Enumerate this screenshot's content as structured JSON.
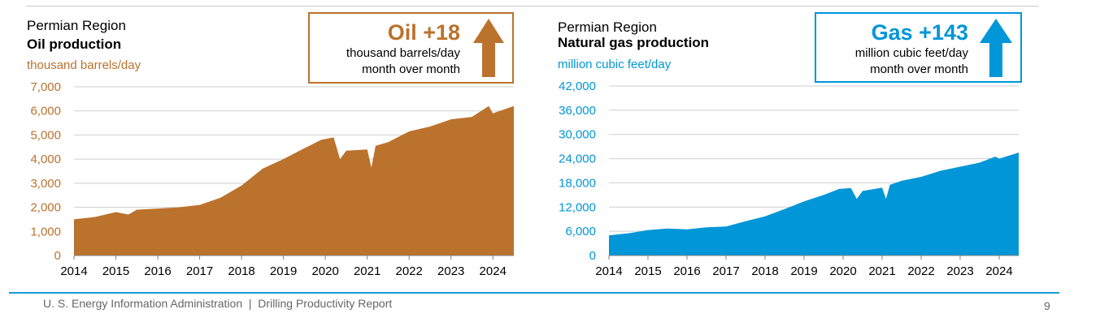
{
  "footer": {
    "text": "U. S. Energy Information Administration  |  Drilling Productivity Report",
    "page": "9"
  },
  "colors": {
    "oil": "#bb722d",
    "gas": "#0096d8",
    "grid": "#cfcfcf",
    "axis": "#808080"
  },
  "charts": {
    "oil": {
      "region": "Permian Region",
      "title": "Oil production",
      "unit": "thousand barrels/day",
      "callout": {
        "big": "Oil +18",
        "line1": "thousand barrels/day",
        "line2": "month over month",
        "arrow": "up-arrow-icon"
      }
    },
    "gas": {
      "region": "Permian Region",
      "title": "Natural gas production",
      "unit": "million cubic feet/day",
      "callout": {
        "big": "Gas +143",
        "line1": "million cubic feet/day",
        "line2": "month over month",
        "arrow": "up-arrow-icon"
      }
    }
  },
  "chart_data": [
    {
      "type": "area",
      "title": "Oil production",
      "ylabel": "thousand barrels/day",
      "ylim": [
        0,
        7000
      ],
      "yticks": [
        "0",
        "1,000",
        "2,000",
        "3,000",
        "4,000",
        "5,000",
        "6,000",
        "7,000"
      ],
      "xticks": [
        "2014",
        "2015",
        "2016",
        "2017",
        "2018",
        "2019",
        "2020",
        "2021",
        "2022",
        "2023",
        "2024"
      ],
      "xlim": [
        2014.0,
        2024.5
      ],
      "grid": true,
      "x": [
        2014.0,
        2014.5,
        2015.0,
        2015.3,
        2015.5,
        2016.0,
        2016.5,
        2017.0,
        2017.5,
        2018.0,
        2018.5,
        2019.0,
        2019.5,
        2019.9,
        2020.2,
        2020.35,
        2020.5,
        2021.0,
        2021.1,
        2021.2,
        2021.5,
        2022.0,
        2022.5,
        2023.0,
        2023.5,
        2023.9,
        2024.0,
        2024.5
      ],
      "series": [
        {
          "values": [
            1500,
            1600,
            1800,
            1700,
            1900,
            1950,
            2000,
            2100,
            2400,
            2900,
            3600,
            4000,
            4450,
            4800,
            4900,
            4000,
            4350,
            4400,
            3650,
            4550,
            4700,
            5150,
            5350,
            5650,
            5750,
            6200,
            5900,
            6200
          ]
        }
      ]
    },
    {
      "type": "area",
      "title": "Natural gas production",
      "ylabel": "million cubic feet/day",
      "ylim": [
        0,
        42000
      ],
      "yticks": [
        "0",
        "6,000",
        "12,000",
        "18,000",
        "24,000",
        "30,000",
        "36,000",
        "42,000"
      ],
      "xticks": [
        "2014",
        "2015",
        "2016",
        "2017",
        "2018",
        "2019",
        "2020",
        "2021",
        "2022",
        "2023",
        "2024"
      ],
      "xlim": [
        2014.0,
        2024.5
      ],
      "grid": true,
      "x": [
        2014.0,
        2014.5,
        2015.0,
        2015.5,
        2016.0,
        2016.5,
        2017.0,
        2017.5,
        2018.0,
        2018.5,
        2019.0,
        2019.5,
        2019.9,
        2020.2,
        2020.35,
        2020.5,
        2021.0,
        2021.1,
        2021.2,
        2021.5,
        2022.0,
        2022.5,
        2023.0,
        2023.5,
        2023.9,
        2024.0,
        2024.5
      ],
      "series": [
        {
          "values": [
            5000,
            5500,
            6300,
            6700,
            6500,
            7000,
            7200,
            8500,
            9700,
            11500,
            13400,
            15000,
            16500,
            16700,
            14000,
            16000,
            16800,
            14000,
            17500,
            18500,
            19500,
            21000,
            22000,
            23000,
            24500,
            24000,
            25500
          ]
        }
      ]
    }
  ]
}
